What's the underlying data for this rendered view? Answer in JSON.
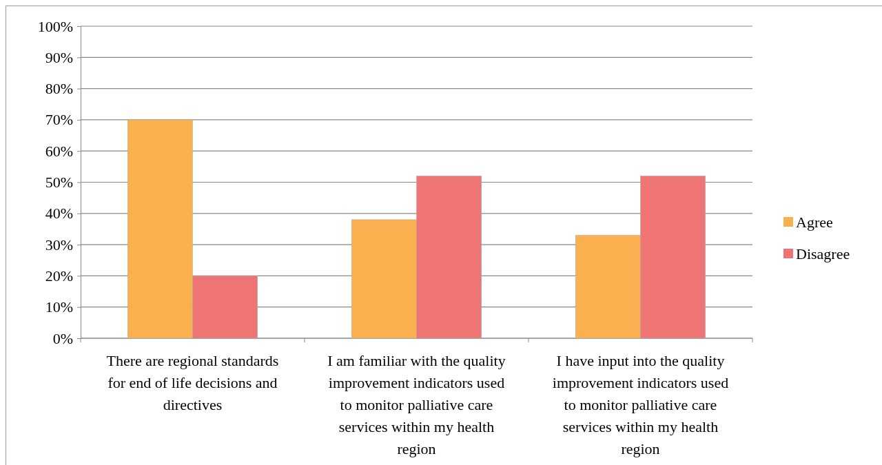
{
  "chart_data": {
    "type": "bar",
    "categories": [
      "There are regional standards for end of life decisions and directives",
      "I am familiar with the quality improvement indicators used to monitor palliative care services within my health region",
      "I have input into the quality improvement indicators used to monitor palliative care services within my health region"
    ],
    "series": [
      {
        "name": "Agree",
        "color": "#fbb050",
        "values": [
          70,
          38,
          33
        ]
      },
      {
        "name": "Disagree",
        "color": "#ef7474",
        "values": [
          20,
          52,
          52
        ]
      }
    ],
    "ylim": [
      0,
      100
    ],
    "yticks": [
      {
        "value": 0,
        "label": "0%"
      },
      {
        "value": 10,
        "label": "10%"
      },
      {
        "value": 20,
        "label": "20%"
      },
      {
        "value": 30,
        "label": "30%"
      },
      {
        "value": 40,
        "label": "40%"
      },
      {
        "value": 50,
        "label": "50%"
      },
      {
        "value": 60,
        "label": "60%"
      },
      {
        "value": 70,
        "label": "70%"
      },
      {
        "value": 80,
        "label": "80%"
      },
      {
        "value": 90,
        "label": "90%"
      },
      {
        "value": 100,
        "label": "100%"
      }
    ],
    "grid": "y",
    "legend": "right"
  }
}
